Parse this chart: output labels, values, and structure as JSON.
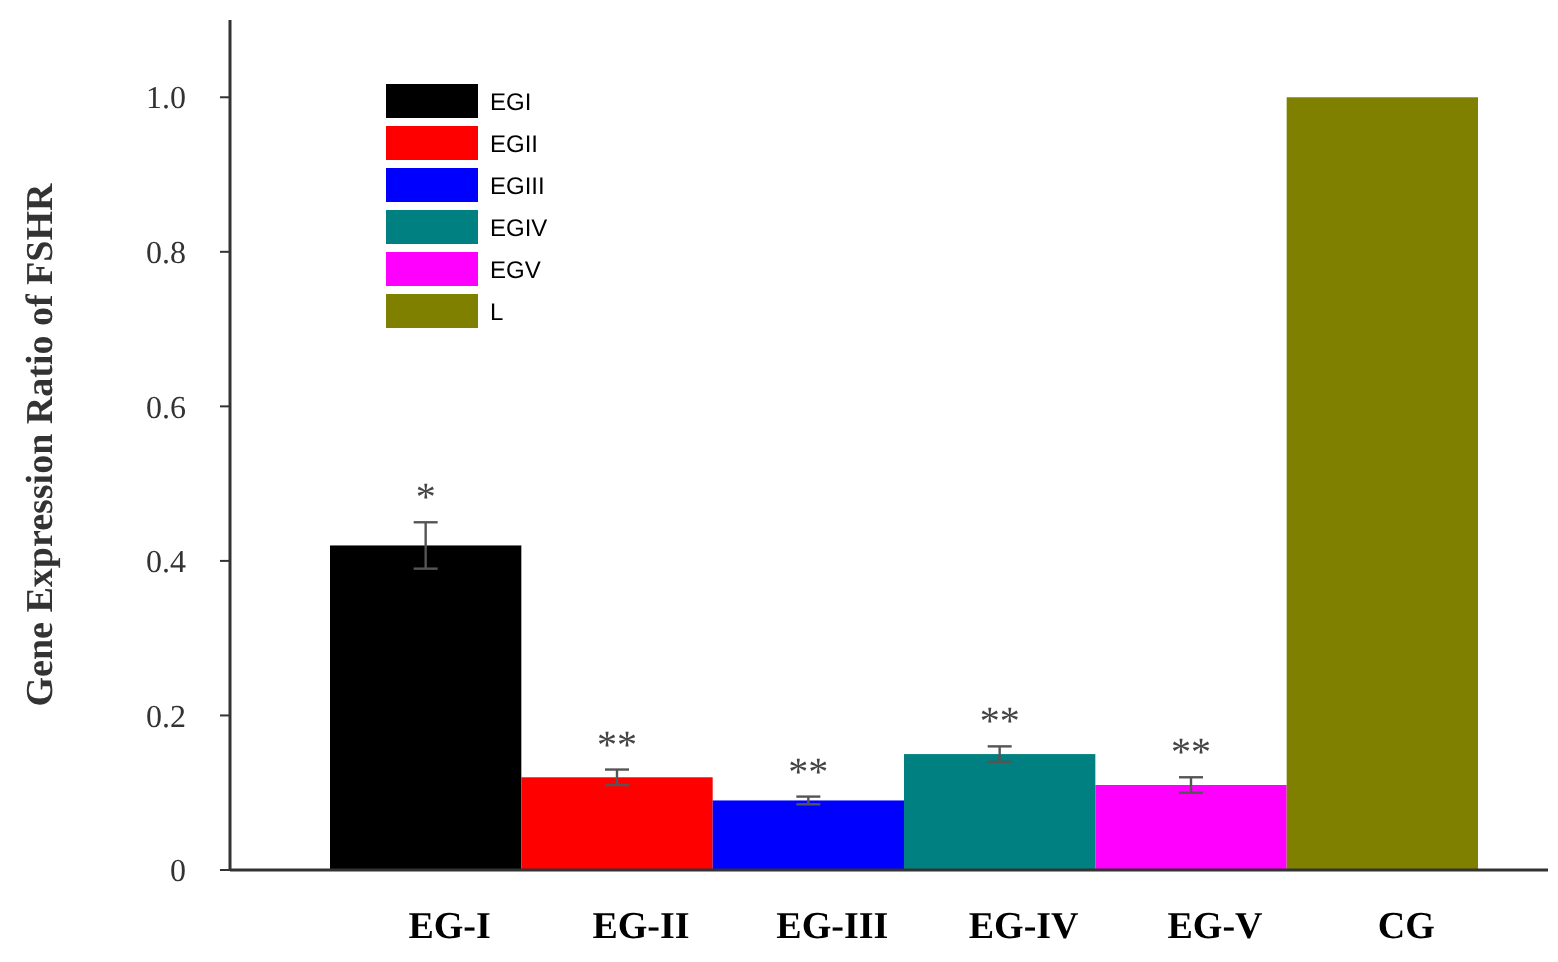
{
  "chart_data": {
    "type": "bar",
    "ylabel": "Gene Expression Ratio of FSHR",
    "categories": [
      "EG-I",
      "EG-II",
      "EG-III",
      "EG-IV",
      "EG-V",
      "CG"
    ],
    "series": [
      {
        "name": "EGI",
        "color": "#000000",
        "values": [
          0.42,
          null,
          null,
          null,
          null,
          null
        ],
        "errors": [
          0.03,
          null,
          null,
          null,
          null,
          null
        ]
      },
      {
        "name": "EGII",
        "color": "#ff0000",
        "values": [
          null,
          0.12,
          null,
          null,
          null,
          null
        ],
        "errors": [
          null,
          0.01,
          null,
          null,
          null,
          null
        ]
      },
      {
        "name": "EGIII",
        "color": "#0000ff",
        "values": [
          null,
          null,
          0.09,
          null,
          null,
          null
        ],
        "errors": [
          null,
          null,
          0.005,
          null,
          null,
          null
        ]
      },
      {
        "name": "EGIV",
        "color": "#008080",
        "values": [
          null,
          null,
          null,
          0.15,
          null,
          null
        ],
        "errors": [
          null,
          null,
          null,
          0.01,
          null,
          null
        ]
      },
      {
        "name": "EGV",
        "color": "#ff00ff",
        "values": [
          null,
          null,
          null,
          null,
          0.11,
          null
        ],
        "errors": [
          null,
          null,
          null,
          null,
          0.01,
          null
        ]
      },
      {
        "name": "L",
        "color": "#808000",
        "values": [
          null,
          null,
          null,
          null,
          null,
          1.0
        ]
      }
    ],
    "ylim": [
      0,
      1.1
    ],
    "yticks": [
      0,
      0.2,
      0.4,
      0.6,
      0.8,
      {
        "value": 1,
        "label": "1.0"
      }
    ],
    "legend": "top left",
    "grid": false,
    "annotations": [
      "*",
      "**",
      "**",
      "**",
      "**"
    ]
  }
}
